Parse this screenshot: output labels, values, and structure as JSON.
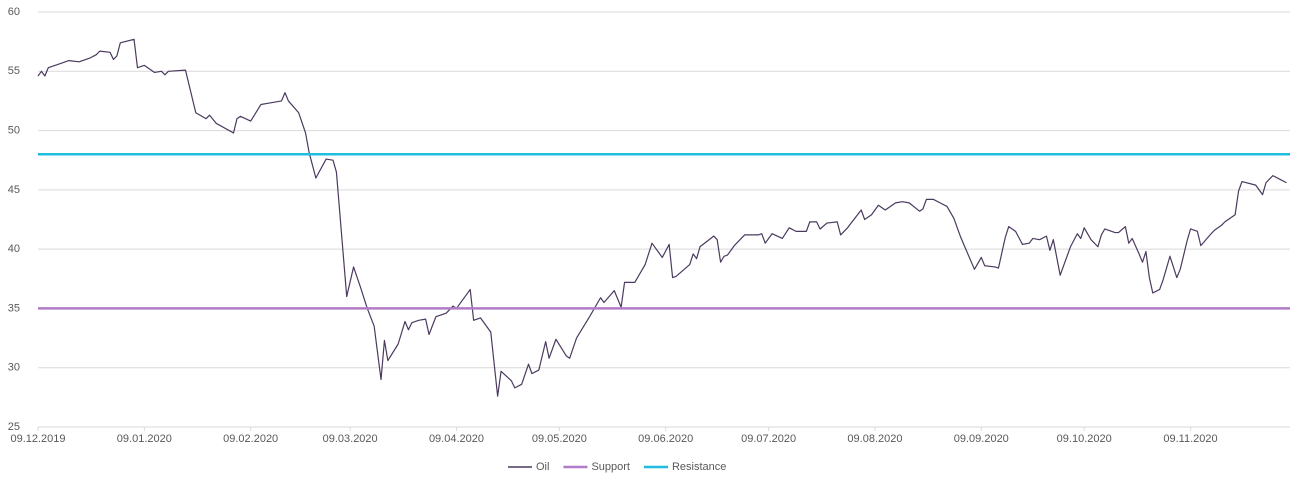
{
  "chart_data": {
    "type": "line",
    "xlim": [
      "2019-12-09",
      "2020-12-08"
    ],
    "xticks": [
      {
        "value": "2019-12-09",
        "label": "09.12.2019"
      },
      {
        "value": "2020-01-09",
        "label": "09.01.2020"
      },
      {
        "value": "2020-02-09",
        "label": "09.02.2020"
      },
      {
        "value": "2020-03-09",
        "label": "09.03.2020"
      },
      {
        "value": "2020-04-09",
        "label": "09.04.2020"
      },
      {
        "value": "2020-05-09",
        "label": "09.05.2020"
      },
      {
        "value": "2020-06-09",
        "label": "09.06.2020"
      },
      {
        "value": "2020-07-09",
        "label": "09.07.2020"
      },
      {
        "value": "2020-08-09",
        "label": "09.08.2020"
      },
      {
        "value": "2020-09-09",
        "label": "09.09.2020"
      },
      {
        "value": "2020-10-09",
        "label": "09.10.2020"
      },
      {
        "value": "2020-11-09",
        "label": "09.11.2020"
      }
    ],
    "ylim": [
      25,
      60
    ],
    "yticks": [
      25,
      30,
      35,
      40,
      45,
      50,
      55,
      60
    ],
    "grid": true,
    "legend": "bottom",
    "series": [
      {
        "name": "Oil",
        "color": "#4b3a5e",
        "x": [
          "2019-12-09",
          "2019-12-10",
          "2019-12-11",
          "2019-12-12",
          "2019-12-15",
          "2019-12-18",
          "2019-12-21",
          "2019-12-24",
          "2019-12-26",
          "2019-12-27",
          "2019-12-30",
          "2019-12-31",
          "2020-01-01",
          "2020-01-02",
          "2020-01-06",
          "2020-01-07",
          "2020-01-09",
          "2020-01-12",
          "2020-01-14",
          "2020-01-15",
          "2020-01-16",
          "2020-01-21",
          "2020-01-24",
          "2020-01-27",
          "2020-01-28",
          "2020-01-30",
          "2020-02-04",
          "2020-02-05",
          "2020-02-06",
          "2020-02-09",
          "2020-02-12",
          "2020-02-14",
          "2020-02-18",
          "2020-02-19",
          "2020-02-20",
          "2020-02-23",
          "2020-02-25",
          "2020-02-26",
          "2020-02-28",
          "2020-03-02",
          "2020-03-04",
          "2020-03-05",
          "2020-03-08",
          "2020-03-10",
          "2020-03-12",
          "2020-03-14",
          "2020-03-16",
          "2020-03-18",
          "2020-03-19",
          "2020-03-20",
          "2020-03-23",
          "2020-03-25",
          "2020-03-26",
          "2020-03-27",
          "2020-03-29",
          "2020-03-31",
          "2020-04-01",
          "2020-04-03",
          "2020-04-06",
          "2020-04-08",
          "2020-04-09",
          "2020-04-13",
          "2020-04-14",
          "2020-04-16",
          "2020-04-19",
          "2020-04-21",
          "2020-04-22",
          "2020-04-25",
          "2020-04-26",
          "2020-04-28",
          "2020-04-30",
          "2020-05-01",
          "2020-05-03",
          "2020-05-05",
          "2020-05-06",
          "2020-05-08",
          "2020-05-11",
          "2020-05-12",
          "2020-05-14",
          "2020-05-18",
          "2020-05-21",
          "2020-05-22",
          "2020-05-25",
          "2020-05-27",
          "2020-05-28",
          "2020-05-31",
          "2020-06-03",
          "2020-06-05",
          "2020-06-08",
          "2020-06-10",
          "2020-06-11",
          "2020-06-12",
          "2020-06-16",
          "2020-06-17",
          "2020-06-18",
          "2020-06-19",
          "2020-06-23",
          "2020-06-24",
          "2020-06-25",
          "2020-06-26",
          "2020-06-27",
          "2020-06-29",
          "2020-07-02",
          "2020-07-06",
          "2020-07-07",
          "2020-07-08",
          "2020-07-10",
          "2020-07-13",
          "2020-07-15",
          "2020-07-17",
          "2020-07-20",
          "2020-07-21",
          "2020-07-23",
          "2020-07-24",
          "2020-07-26",
          "2020-07-29",
          "2020-07-30",
          "2020-08-01",
          "2020-08-05",
          "2020-08-06",
          "2020-08-08",
          "2020-08-10",
          "2020-08-12",
          "2020-08-15",
          "2020-08-17",
          "2020-08-19",
          "2020-08-22",
          "2020-08-23",
          "2020-08-24",
          "2020-08-26",
          "2020-08-28",
          "2020-08-30",
          "2020-09-01",
          "2020-09-03",
          "2020-09-07",
          "2020-09-09",
          "2020-09-10",
          "2020-09-13",
          "2020-09-14",
          "2020-09-16",
          "2020-09-17",
          "2020-09-19",
          "2020-09-21",
          "2020-09-23",
          "2020-09-24",
          "2020-09-26",
          "2020-09-28",
          "2020-09-29",
          "2020-09-30",
          "2020-10-02",
          "2020-10-05",
          "2020-10-07",
          "2020-10-08",
          "2020-10-09",
          "2020-10-11",
          "2020-10-13",
          "2020-10-14",
          "2020-10-15",
          "2020-10-18",
          "2020-10-19",
          "2020-10-21",
          "2020-10-22",
          "2020-10-23",
          "2020-10-25",
          "2020-10-26",
          "2020-10-27",
          "2020-10-28",
          "2020-10-29",
          "2020-10-31",
          "2020-11-01",
          "2020-11-03",
          "2020-11-05",
          "2020-11-06",
          "2020-11-08",
          "2020-11-09",
          "2020-11-11",
          "2020-11-12",
          "2020-11-15",
          "2020-11-16",
          "2020-11-18",
          "2020-11-19",
          "2020-11-22",
          "2020-11-23",
          "2020-11-24",
          "2020-11-28",
          "2020-11-30",
          "2020-12-01",
          "2020-12-03",
          "2020-12-05",
          "2020-12-07"
        ],
        "values": [
          54.6,
          55.0,
          54.6,
          55.3,
          55.6,
          55.9,
          55.8,
          56.1,
          56.4,
          56.7,
          56.6,
          56.0,
          56.3,
          57.4,
          57.7,
          55.3,
          55.5,
          54.9,
          55.0,
          54.7,
          55.0,
          55.1,
          51.5,
          51.0,
          51.3,
          50.6,
          49.8,
          51.0,
          51.2,
          50.8,
          52.2,
          52.3,
          52.5,
          53.2,
          52.5,
          51.5,
          49.8,
          48.2,
          46.0,
          47.6,
          47.5,
          46.5,
          36.0,
          38.5,
          36.8,
          35.0,
          33.5,
          29.0,
          32.3,
          30.6,
          32.0,
          33.9,
          33.2,
          33.8,
          34.0,
          34.1,
          32.8,
          34.3,
          34.6,
          35.2,
          35.0,
          36.6,
          34.0,
          34.2,
          33.0,
          27.6,
          29.7,
          28.9,
          28.3,
          28.6,
          30.3,
          29.5,
          29.8,
          32.2,
          30.8,
          32.4,
          31.0,
          30.8,
          32.5,
          34.4,
          35.9,
          35.5,
          36.5,
          35.1,
          37.2,
          37.2,
          38.7,
          40.5,
          39.3,
          40.4,
          37.6,
          37.7,
          38.7,
          39.6,
          39.2,
          40.2,
          41.1,
          40.8,
          38.9,
          39.4,
          39.5,
          40.3,
          41.2,
          41.2,
          41.3,
          40.5,
          41.3,
          40.9,
          41.8,
          41.5,
          41.5,
          42.3,
          42.3,
          41.7,
          42.2,
          42.3,
          41.2,
          41.8,
          43.3,
          42.5,
          42.9,
          43.7,
          43.3,
          43.9,
          44.0,
          43.9,
          43.2,
          43.4,
          44.2,
          44.2,
          43.9,
          43.6,
          42.6,
          41.0,
          38.3,
          39.3,
          38.6,
          38.5,
          38.4,
          41.0,
          41.9,
          41.5,
          40.4,
          40.5,
          40.9,
          40.8,
          41.1,
          39.9,
          40.8,
          37.8,
          40.2,
          41.3,
          40.9,
          41.8,
          40.8,
          40.2,
          41.2,
          41.7,
          41.4,
          41.4,
          41.9,
          40.5,
          40.9,
          39.6,
          38.9,
          39.8,
          37.6,
          36.3,
          36.6,
          37.4,
          39.4,
          37.6,
          38.3,
          40.7,
          41.7,
          41.5,
          40.3,
          41.3,
          41.6,
          42.0,
          42.3,
          42.9,
          44.9,
          45.7,
          45.4,
          44.6,
          45.6,
          46.2,
          45.9,
          45.6
        ]
      },
      {
        "name": "Support",
        "color": "#b07cc6",
        "x": [
          "2019-12-09",
          "2020-12-08"
        ],
        "values": [
          35,
          35
        ]
      },
      {
        "name": "Resistance",
        "color": "#1fbde0",
        "x": [
          "2019-12-09",
          "2020-12-08"
        ],
        "values": [
          48,
          48
        ]
      }
    ]
  }
}
